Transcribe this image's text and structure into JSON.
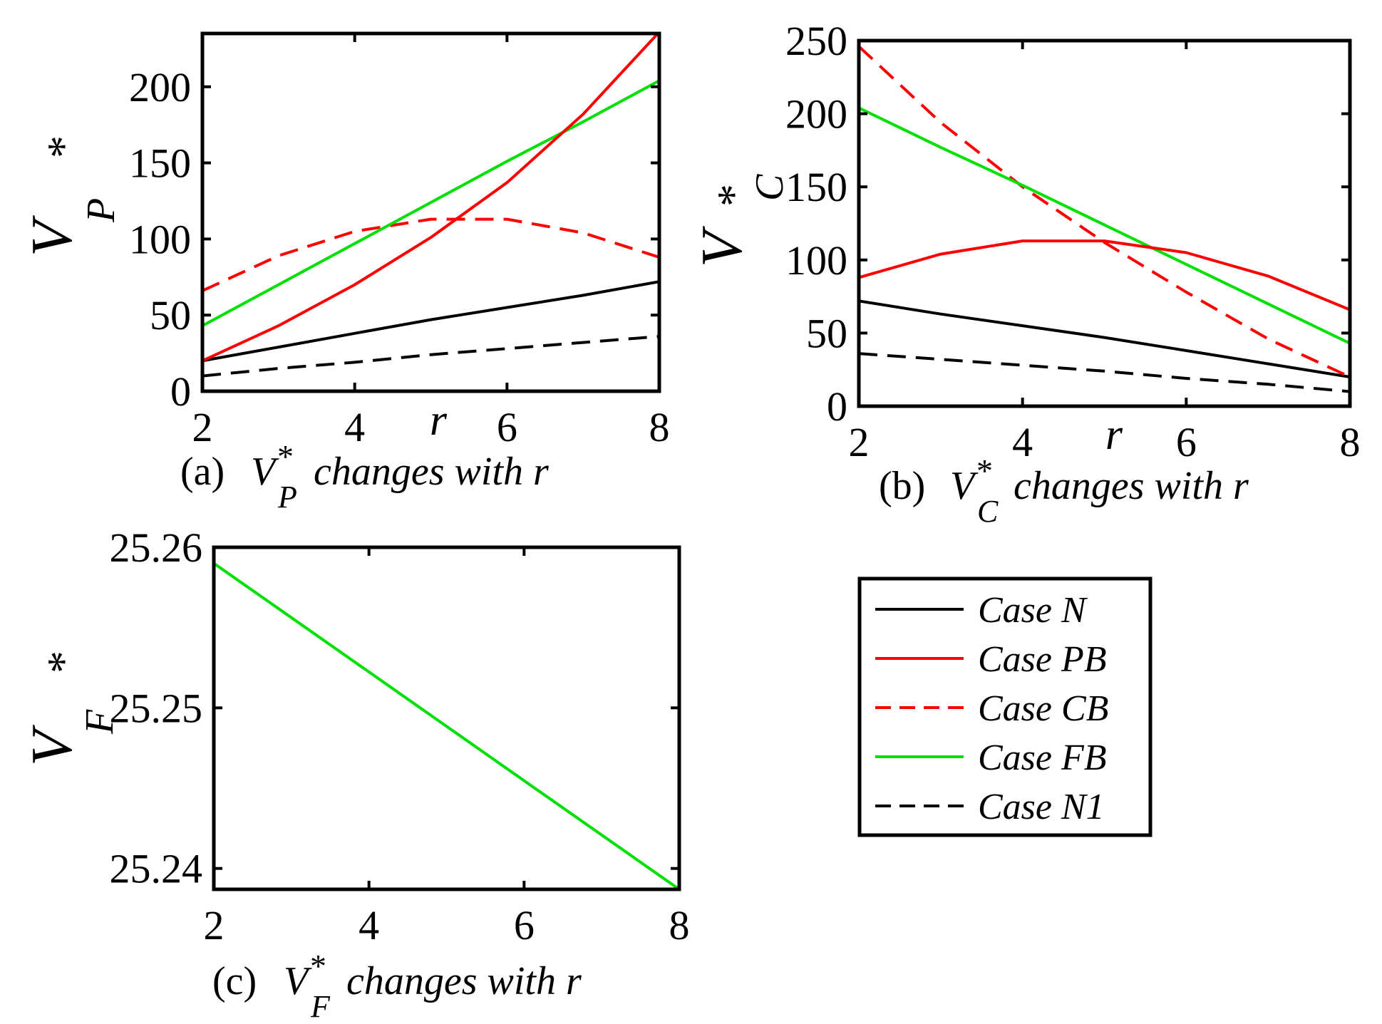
{
  "colors": {
    "black": "#000000",
    "red": "#ff0000",
    "green": "#00e000"
  },
  "legend": {
    "entries": [
      {
        "label": "Case N",
        "color": "#000000",
        "dash": "solid"
      },
      {
        "label": "Case PB",
        "color": "#ff0000",
        "dash": "solid"
      },
      {
        "label": "Case CB",
        "color": "#ff0000",
        "dash": "dashed"
      },
      {
        "label": "Case FB",
        "color": "#00e000",
        "dash": "solid"
      },
      {
        "label": "Case N1",
        "color": "#000000",
        "dash": "dashed"
      }
    ]
  },
  "chart_data": [
    {
      "type": "line",
      "id": "a",
      "title": "(a) V*P changes with r",
      "caption_prefix": "(a)",
      "caption_suffix": "changes with r",
      "xlabel": "r",
      "ylabel": "V*P",
      "ylabel_main": "V",
      "ylabel_sub": "P",
      "ylabel_star": "*",
      "xlim": [
        2,
        8
      ],
      "ylim": [
        0,
        235
      ],
      "xticks": [
        2,
        4,
        6,
        8
      ],
      "yticks": [
        0,
        50,
        100,
        150,
        200
      ],
      "x": [
        2,
        3,
        4,
        5,
        6,
        7,
        8
      ],
      "series": [
        {
          "name": "Case N",
          "values": [
            20,
            29,
            38,
            47,
            55,
            63,
            72
          ]
        },
        {
          "name": "Case PB",
          "values": [
            20,
            43,
            70,
            101,
            137,
            182,
            236
          ]
        },
        {
          "name": "Case CB",
          "values": [
            66,
            89,
            105,
            113,
            113,
            104,
            88
          ]
        },
        {
          "name": "Case FB",
          "values": [
            43,
            70,
            97,
            124,
            151,
            177,
            204
          ]
        },
        {
          "name": "Case N1",
          "values": [
            10,
            15,
            19,
            24,
            28,
            32,
            36
          ]
        }
      ]
    },
    {
      "type": "line",
      "id": "b",
      "title": "(b) V*C changes with r",
      "caption_prefix": "(b)",
      "caption_suffix": "changes with r",
      "xlabel": "r",
      "ylabel": "V*C",
      "ylabel_main": "V",
      "ylabel_sub": "C",
      "ylabel_star": "*",
      "xlim": [
        2,
        8
      ],
      "ylim": [
        0,
        250
      ],
      "xticks": [
        2,
        4,
        6,
        8
      ],
      "yticks": [
        0,
        50,
        100,
        150,
        200,
        250
      ],
      "x": [
        2,
        3,
        4,
        5,
        6,
        7,
        8
      ],
      "series": [
        {
          "name": "Case N",
          "values": [
            72,
            63,
            55,
            47,
            38,
            29,
            20
          ]
        },
        {
          "name": "Case PB",
          "values": [
            88,
            104,
            113,
            113,
            105,
            89,
            66
          ]
        },
        {
          "name": "Case CB",
          "values": [
            246,
            194,
            150,
            112,
            78,
            46,
            20
          ]
        },
        {
          "name": "Case FB",
          "values": [
            204,
            177,
            151,
            124,
            97,
            70,
            43
          ]
        },
        {
          "name": "Case N1",
          "values": [
            36,
            32,
            28,
            24,
            19,
            15,
            10
          ]
        }
      ]
    },
    {
      "type": "line",
      "id": "c",
      "title": "(c) V*F changes with r",
      "caption_prefix": "(c)",
      "caption_suffix": "changes with r",
      "xlabel": "",
      "ylabel": "V*F",
      "ylabel_main": "V",
      "ylabel_sub": "F",
      "ylabel_star": "*",
      "xlim": [
        2,
        8
      ],
      "ylim": [
        25.2387,
        25.26
      ],
      "xticks": [
        2,
        4,
        6,
        8
      ],
      "yticks": [
        25.24,
        25.25,
        25.26
      ],
      "ytick_labels": [
        "25.24",
        "25.25",
        "25.26"
      ],
      "x": [
        2,
        8
      ],
      "series": [
        {
          "name": "Case FB",
          "values": [
            25.259,
            25.2387
          ]
        }
      ]
    }
  ]
}
